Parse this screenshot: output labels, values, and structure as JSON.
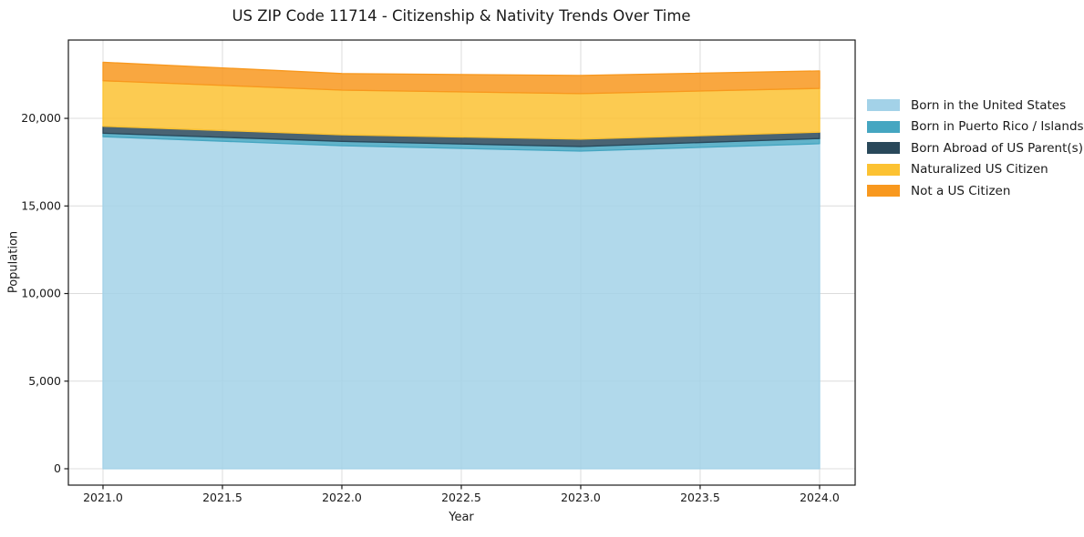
{
  "chart_data": {
    "type": "area",
    "stacked": true,
    "title": "US ZIP Code 11714 - Citizenship & Nativity Trends Over Time",
    "xlabel": "Year",
    "ylabel": "Population",
    "x": [
      2021,
      2022,
      2023,
      2024
    ],
    "series": [
      {
        "name": "Born in the United States",
        "color": "#A3D2E8",
        "values": [
          18950,
          18440,
          18130,
          18550
        ]
      },
      {
        "name": "Born in Puerto Rico / Islands",
        "color": "#45A6C1",
        "values": [
          200,
          250,
          260,
          300
        ]
      },
      {
        "name": "Born Abroad of US Parent(s)",
        "color": "#29485A",
        "values": [
          400,
          370,
          420,
          360
        ]
      },
      {
        "name": "Naturalized US Citizen",
        "color": "#FCC232",
        "values": [
          2600,
          2550,
          2600,
          2500
        ]
      },
      {
        "name": "Not a US Citizen",
        "color": "#F8981E",
        "values": [
          1050,
          950,
          1040,
          1000
        ]
      }
    ],
    "xticks": {
      "values": [
        2021.0,
        2021.5,
        2022.0,
        2022.5,
        2023.0,
        2023.5,
        2024.0
      ],
      "labels": [
        "2021.0",
        "2021.5",
        "2022.0",
        "2022.5",
        "2023.0",
        "2023.5",
        "2024.0"
      ]
    },
    "yticks": {
      "values": [
        0,
        5000,
        10000,
        15000,
        20000
      ],
      "labels": [
        "0",
        "5,000",
        "10,000",
        "15,000",
        "20,000"
      ]
    },
    "xlim": [
      2020.855,
      2024.149
    ],
    "ylim": [
      -935,
      24470
    ],
    "grid": true,
    "grid_color": "#dcdcdc",
    "spine_color": "#1a1a1a",
    "fill_opacity": 0.85,
    "legend_position": "right"
  }
}
